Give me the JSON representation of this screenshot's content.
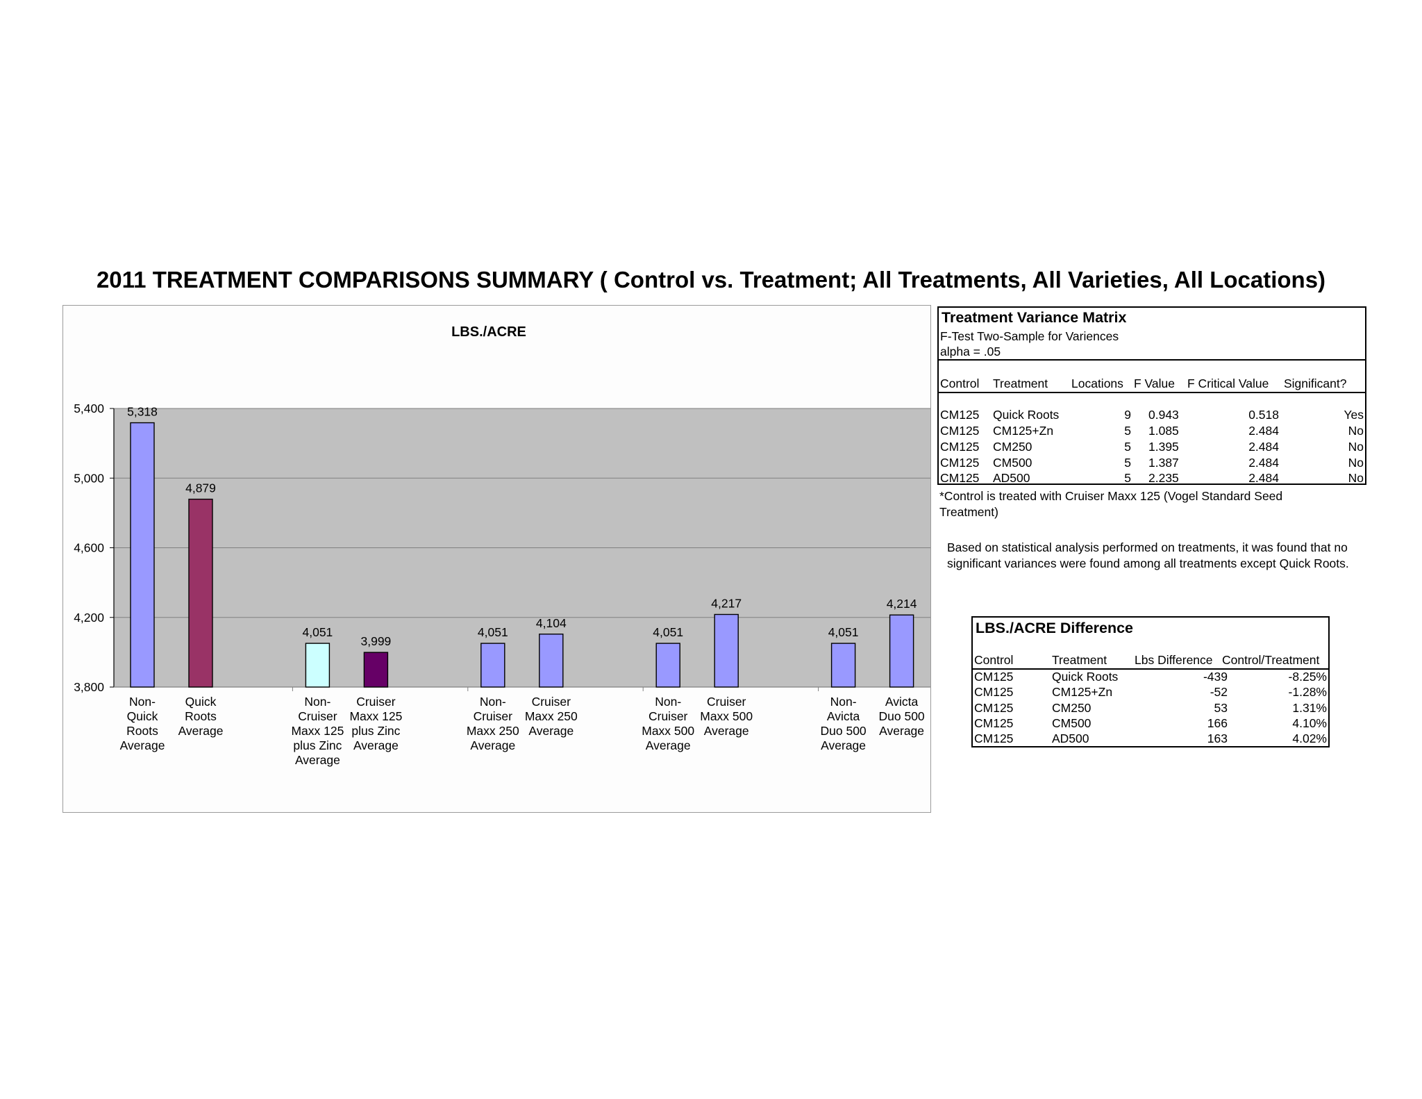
{
  "page": {
    "title": "2011 TREATMENT COMPARISONS SUMMARY ( Control vs. Treatment; All Treatments, All Varieties, All Locations)"
  },
  "chart_data": {
    "type": "bar",
    "title": "LBS./ACRE",
    "ylim": [
      3800,
      5400
    ],
    "yticks": [
      "5,400",
      "5,000",
      "4,600",
      "4,200",
      "3,800"
    ],
    "ytick_values": [
      5400,
      5000,
      4600,
      4200,
      3800
    ],
    "grid": true,
    "plot_background": "#c0c0c0",
    "groups": [
      {
        "bars": [
          {
            "label": [
              "Non-",
              "Quick",
              "Roots",
              "Average"
            ],
            "value": 5318,
            "value_label": "5,318",
            "color": "#9999ff"
          },
          {
            "label": [
              "Quick",
              "Roots",
              "Average"
            ],
            "value": 4879,
            "value_label": "4,879",
            "color": "#993366"
          }
        ]
      },
      {
        "bars": [
          {
            "label": [
              "Non-",
              "Cruiser",
              "Maxx 125",
              "plus Zinc",
              "Average"
            ],
            "value": 4051,
            "value_label": "4,051",
            "color": "#ccffff"
          },
          {
            "label": [
              "Cruiser",
              "Maxx 125",
              "plus Zinc",
              "Average"
            ],
            "value": 3999,
            "value_label": "3,999",
            "color": "#660066"
          }
        ]
      },
      {
        "bars": [
          {
            "label": [
              "Non-",
              "Cruiser",
              "Maxx 250",
              "Average"
            ],
            "value": 4051,
            "value_label": "4,051",
            "color": "#9999ff"
          },
          {
            "label": [
              "Cruiser",
              "Maxx 250",
              "Average"
            ],
            "value": 4104,
            "value_label": "4,104",
            "color": "#9999ff"
          }
        ]
      },
      {
        "bars": [
          {
            "label": [
              "Non-",
              "Cruiser",
              "Maxx 500",
              "Average"
            ],
            "value": 4051,
            "value_label": "4,051",
            "color": "#9999ff"
          },
          {
            "label": [
              "Cruiser",
              "Maxx 500",
              "Average"
            ],
            "value": 4217,
            "value_label": "4,217",
            "color": "#9999ff"
          }
        ]
      },
      {
        "bars": [
          {
            "label": [
              "Non-",
              "Avicta",
              "Duo 500",
              "Average"
            ],
            "value": 4051,
            "value_label": "4,051",
            "color": "#9999ff"
          },
          {
            "label": [
              "Avicta",
              "Duo 500",
              "Average"
            ],
            "value": 4214,
            "value_label": "4,214",
            "color": "#9999ff"
          }
        ]
      }
    ]
  },
  "variance_matrix": {
    "title": "Treatment Variance Matrix",
    "subtitle": "F-Test Two-Sample for Variences",
    "alpha": "alpha = .05",
    "headers": [
      "Control",
      "Treatment",
      "Locations",
      "F Value",
      "F Critical Value",
      "Significant?"
    ],
    "rows": [
      [
        "CM125",
        "Quick Roots",
        "9",
        "0.943",
        "0.518",
        "Yes"
      ],
      [
        "CM125",
        "CM125+Zn",
        "5",
        "1.085",
        "2.484",
        "No"
      ],
      [
        "CM125",
        "CM250",
        "5",
        "1.395",
        "2.484",
        "No"
      ],
      [
        "CM125",
        "CM500",
        "5",
        "1.387",
        "2.484",
        "No"
      ],
      [
        "CM125",
        "AD500",
        "5",
        "2.235",
        "2.484",
        "No"
      ]
    ]
  },
  "notes": {
    "control_line1": "*Control is treated with Cruiser Maxx 125 (Vogel Standard Seed",
    "control_line2": "Treatment)",
    "analysis_line1": "Based on statistical analysis performed on treatments, it was found that no",
    "analysis_line2": "significant variances were found among all treatments except Quick Roots."
  },
  "difference_table": {
    "title": "LBS./ACRE Difference",
    "headers": [
      "Control",
      "Treatment",
      "Lbs Difference",
      "Control/Treatment"
    ],
    "rows": [
      [
        "CM125",
        "Quick Roots",
        "-439",
        "-8.25%"
      ],
      [
        "CM125",
        "CM125+Zn",
        "-52",
        "-1.28%"
      ],
      [
        "CM125",
        "CM250",
        "53",
        "1.31%"
      ],
      [
        "CM125",
        "CM500",
        "166",
        "4.10%"
      ],
      [
        "CM125",
        "AD500",
        "163",
        "4.02%"
      ]
    ]
  }
}
